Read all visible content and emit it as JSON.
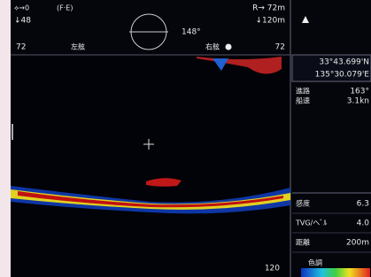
{
  "header": {
    "offset": "⟡→0",
    "depth_left": "↓48",
    "mode": "(F·E)",
    "bearing": "148°",
    "range_right": "R→ 72m",
    "depth_right": "↓120m"
  },
  "scale_row": {
    "left_value": "72",
    "port": "左舷",
    "starboard": "右舷",
    "right_value": "72"
  },
  "depth_marker": "120",
  "panel": {
    "position": {
      "latitude": "33°43.699'N",
      "longitude": "135°30.079'E"
    },
    "course": {
      "label": "進路",
      "value": "163°"
    },
    "speed": {
      "label": "船速",
      "value": "3.1kn"
    },
    "settings": [
      {
        "label": "感度",
        "value": "6.3"
      },
      {
        "label": "TVG/ヘﾞﾙ",
        "value": "4.0"
      },
      {
        "label": "距離",
        "value": "200m"
      }
    ],
    "colorbar_label": "色調"
  }
}
